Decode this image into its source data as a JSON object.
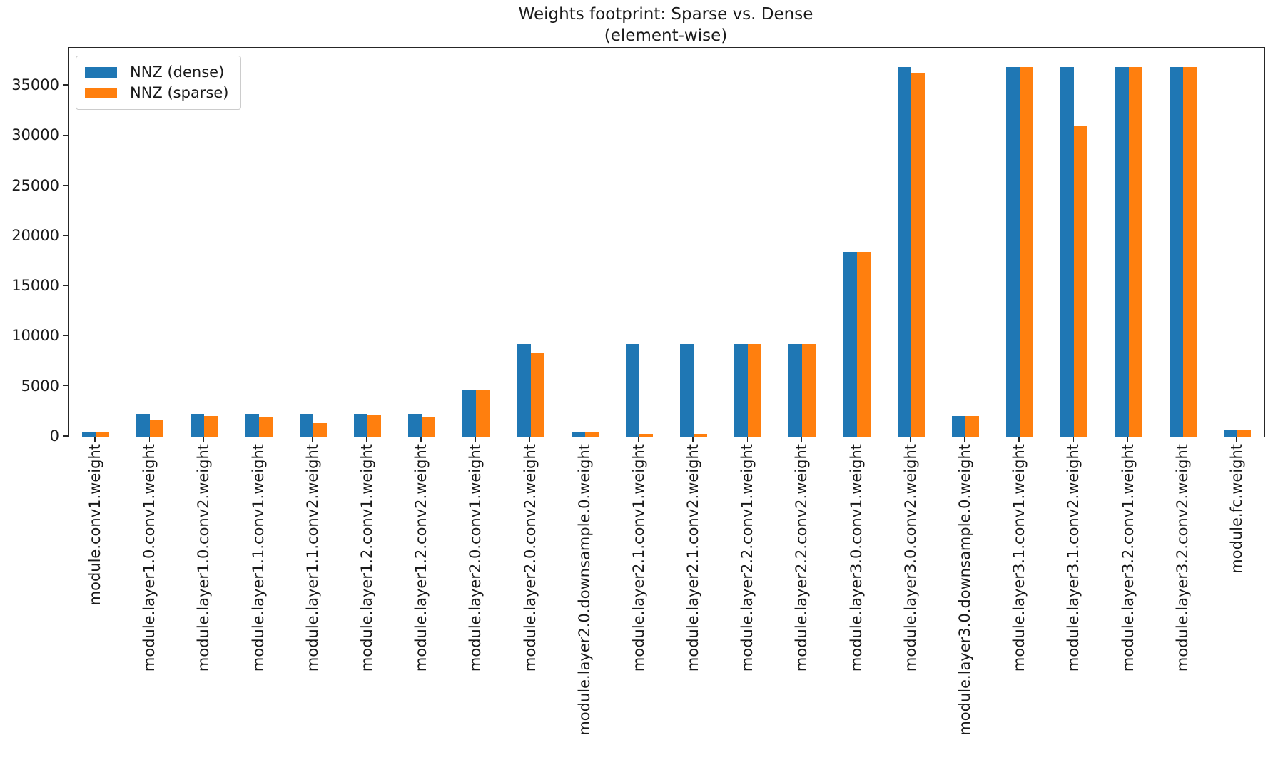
{
  "chart_data": {
    "type": "bar",
    "title": "Weights footprint: Sparse vs. Dense",
    "subtitle": "(element-wise)",
    "xlabel": "",
    "ylabel": "",
    "grid": false,
    "legend_position": "upper-left",
    "ylim": [
      0,
      38770
    ],
    "yticks": [
      0,
      5000,
      10000,
      15000,
      20000,
      25000,
      30000,
      35000
    ],
    "categories": [
      "module.conv1.weight",
      "module.layer1.0.conv1.weight",
      "module.layer1.0.conv2.weight",
      "module.layer1.1.conv1.weight",
      "module.layer1.1.conv2.weight",
      "module.layer1.2.conv1.weight",
      "module.layer1.2.conv2.weight",
      "module.layer2.0.conv1.weight",
      "module.layer2.0.conv2.weight",
      "module.layer2.0.downsample.0.weight",
      "module.layer2.1.conv1.weight",
      "module.layer2.1.conv2.weight",
      "module.layer2.2.conv1.weight",
      "module.layer2.2.conv2.weight",
      "module.layer3.0.conv1.weight",
      "module.layer3.0.conv2.weight",
      "module.layer3.0.downsample.0.weight",
      "module.layer3.1.conv1.weight",
      "module.layer3.1.conv2.weight",
      "module.layer3.2.conv1.weight",
      "module.layer3.2.conv2.weight",
      "module.fc.weight"
    ],
    "series": [
      {
        "name": "NNZ (dense)",
        "color": "#1f77b4",
        "values": [
          432,
          2304,
          2304,
          2304,
          2304,
          2304,
          2304,
          4608,
          9216,
          512,
          9216,
          9216,
          9216,
          9216,
          18432,
          36864,
          2048,
          36864,
          36864,
          36864,
          36864,
          640
        ]
      },
      {
        "name": "NNZ (sparse)",
        "color": "#ff7f0e",
        "values": [
          432,
          1610,
          2040,
          1900,
          1330,
          2180,
          1900,
          4608,
          8430,
          512,
          310,
          310,
          9216,
          9216,
          18432,
          36270,
          2048,
          36864,
          31040,
          36864,
          36864,
          640
        ]
      }
    ]
  },
  "colors": {
    "axis": "#262626",
    "text": "#1a1a1a",
    "legend_border": "#cccccc",
    "background": "#ffffff"
  }
}
